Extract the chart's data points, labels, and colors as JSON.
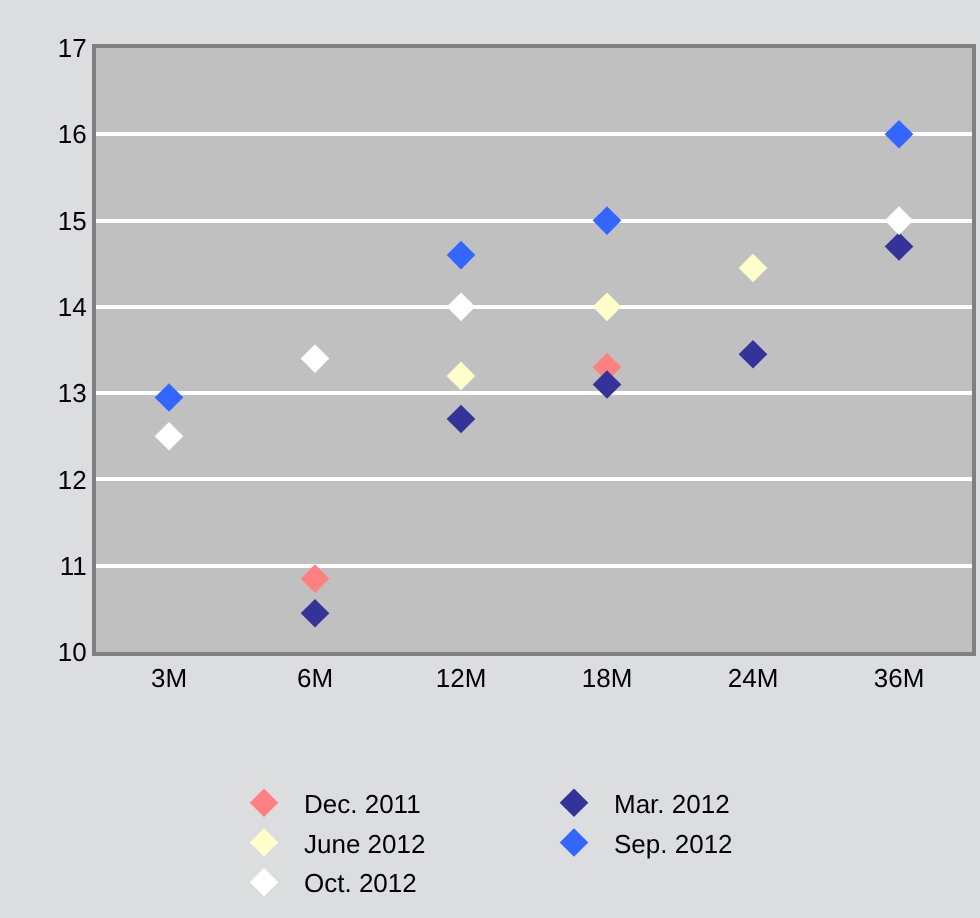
{
  "chart_data": {
    "type": "scatter",
    "categories": [
      "3M",
      "6M",
      "12M",
      "18M",
      "24M",
      "36M"
    ],
    "series": [
      {
        "name": "Dec. 2011",
        "color": "#ff8080",
        "values": [
          null,
          10.85,
          null,
          13.3,
          null,
          null
        ]
      },
      {
        "name": "Mar. 2012",
        "color": "#333399",
        "values": [
          null,
          10.45,
          12.7,
          13.1,
          13.45,
          14.7
        ]
      },
      {
        "name": "June 2012",
        "color": "#ffffcc",
        "values": [
          null,
          null,
          13.2,
          14.0,
          14.45,
          null
        ]
      },
      {
        "name": "Sep. 2012",
        "color": "#3366ff",
        "values": [
          12.95,
          null,
          14.6,
          15.0,
          null,
          16.0
        ]
      },
      {
        "name": "Oct. 2012",
        "color": "#ffffff",
        "values": [
          12.5,
          13.4,
          14.0,
          null,
          null,
          15.0
        ]
      }
    ],
    "ylim": [
      10,
      17
    ],
    "yticks": [
      10,
      11,
      12,
      13,
      14,
      15,
      16,
      17
    ],
    "grid": "y",
    "legend": "bottom",
    "marker": "diamond"
  }
}
